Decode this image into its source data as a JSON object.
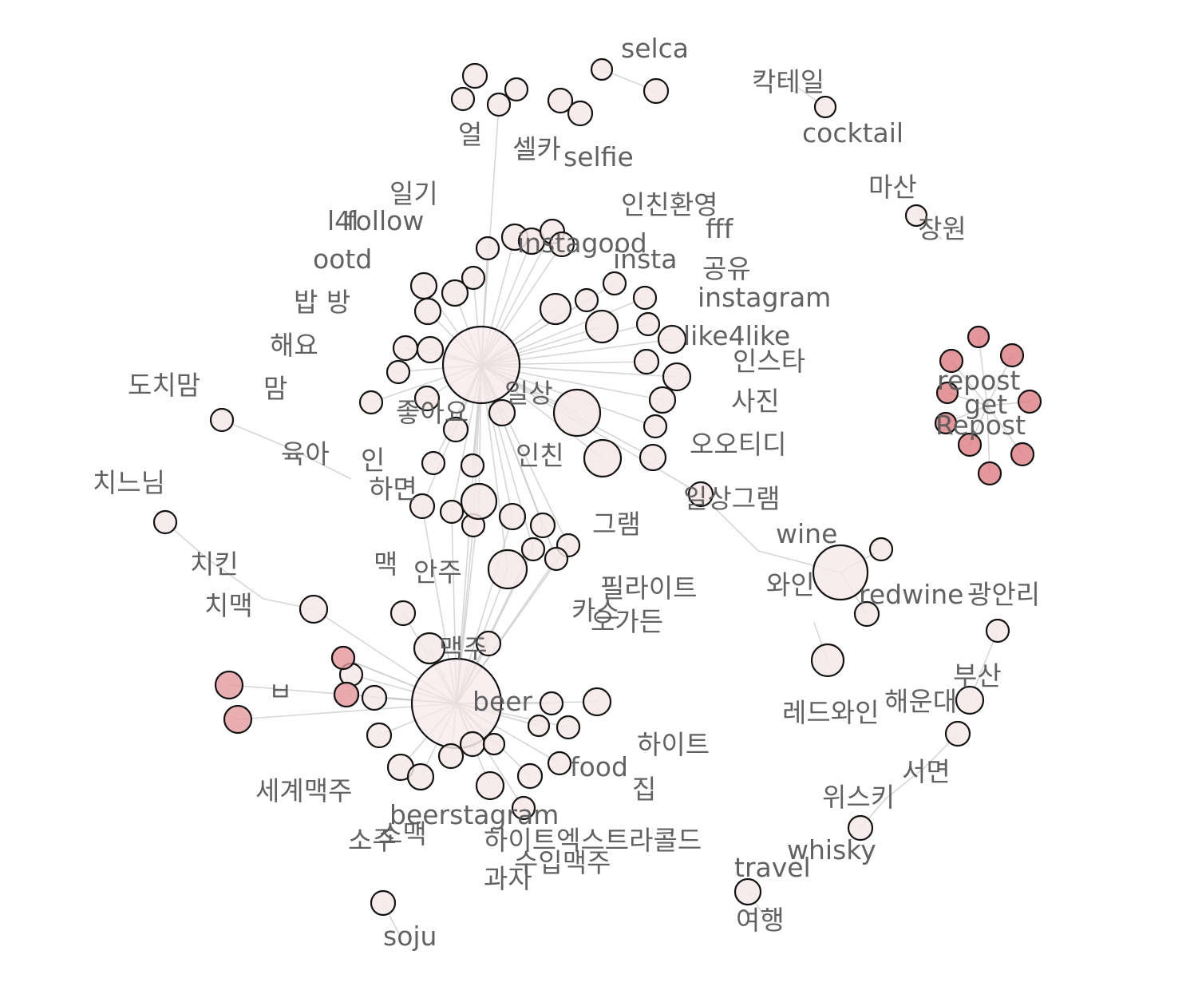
{
  "colors": {
    "node_fill": "#f6e8e9",
    "node_fill_hot": "#e39a9e",
    "node_fill_hot_dark": "#d9747a",
    "edge": "#c9c9c9",
    "label": "#5a5a5a"
  },
  "nodes": [
    {
      "id": "hub_daily",
      "r": 48
    },
    {
      "id": "hub_beer",
      "r": 56
    },
    {
      "id": "n1"
    },
    {
      "id": "n2"
    },
    {
      "id": "n3"
    },
    {
      "id": "n4"
    },
    {
      "id": "n5"
    },
    {
      "id": "n6"
    },
    {
      "id": "n7"
    },
    {
      "id": "n8"
    },
    {
      "id": "n9"
    },
    {
      "id": "n10"
    },
    {
      "id": "n11"
    },
    {
      "id": "n12"
    },
    {
      "id": "n13"
    },
    {
      "id": "n14"
    },
    {
      "id": "n15"
    },
    {
      "id": "n16"
    },
    {
      "id": "n17"
    },
    {
      "id": "n18"
    },
    {
      "id": "n19"
    },
    {
      "id": "n20"
    },
    {
      "id": "n21"
    },
    {
      "id": "n22"
    },
    {
      "id": "n23"
    },
    {
      "id": "n24"
    },
    {
      "id": "n25"
    },
    {
      "id": "n26"
    },
    {
      "id": "n27"
    },
    {
      "id": "n28"
    },
    {
      "id": "n29"
    },
    {
      "id": "n30"
    },
    {
      "id": "n31"
    },
    {
      "id": "n32"
    },
    {
      "id": "n33"
    },
    {
      "id": "n34"
    },
    {
      "id": "n35"
    },
    {
      "id": "n36"
    },
    {
      "id": "n37"
    },
    {
      "id": "n38"
    },
    {
      "id": "n39"
    },
    {
      "id": "n40"
    }
  ],
  "labels": [
    {
      "id": "selca",
      "text": "selca"
    },
    {
      "id": "cocktail_ko",
      "text": "칵테일"
    },
    {
      "id": "cocktail",
      "text": "cocktail"
    },
    {
      "id": "eol",
      "text": "얼"
    },
    {
      "id": "selca_ko",
      "text": "셀카"
    },
    {
      "id": "selfie",
      "text": "selfie"
    },
    {
      "id": "masan",
      "text": "마산"
    },
    {
      "id": "changwon",
      "text": "창원"
    },
    {
      "id": "diary",
      "text": "일기"
    },
    {
      "id": "instachin",
      "text": "인친환영"
    },
    {
      "id": "l4l",
      "text": "l4l"
    },
    {
      "id": "follow",
      "text": "follow"
    },
    {
      "id": "fff",
      "text": "fff"
    },
    {
      "id": "instagood",
      "text": "instagood"
    },
    {
      "id": "ootd",
      "text": "ootd"
    },
    {
      "id": "insta",
      "text": "insta"
    },
    {
      "id": "share",
      "text": "공유"
    },
    {
      "id": "instagram",
      "text": "instagram"
    },
    {
      "id": "bapbang",
      "text": "밥 방"
    },
    {
      "id": "like4like",
      "text": "like4like"
    },
    {
      "id": "haeyo",
      "text": "해요"
    },
    {
      "id": "insta_ko",
      "text": "인스타"
    },
    {
      "id": "repost",
      "text": "repost"
    },
    {
      "id": "dochimom",
      "text": "도치맘"
    },
    {
      "id": "mom",
      "text": "맘"
    },
    {
      "id": "daily",
      "text": "일상"
    },
    {
      "id": "photo",
      "text": "사진"
    },
    {
      "id": "get",
      "text": "get"
    },
    {
      "id": "repost2",
      "text": "Repost"
    },
    {
      "id": "likes",
      "text": "좋아요"
    },
    {
      "id": "ootd_ko",
      "text": "오오티디"
    },
    {
      "id": "parenting",
      "text": "육아"
    },
    {
      "id": "in",
      "text": "인"
    },
    {
      "id": "inchin",
      "text": "인친"
    },
    {
      "id": "chinunim",
      "text": "치느님"
    },
    {
      "id": "hamyeon",
      "text": "하면"
    },
    {
      "id": "dailygram",
      "text": "일상그램"
    },
    {
      "id": "gram",
      "text": "그램"
    },
    {
      "id": "wine",
      "text": "wine"
    },
    {
      "id": "chicken",
      "text": "치킨"
    },
    {
      "id": "maek",
      "text": "맥"
    },
    {
      "id": "anju",
      "text": "안주"
    },
    {
      "id": "filite",
      "text": "필라이트"
    },
    {
      "id": "wine_ko",
      "text": "와인"
    },
    {
      "id": "redwine",
      "text": "redwine"
    },
    {
      "id": "gwangalli",
      "text": "광안리"
    },
    {
      "id": "chimaek",
      "text": "치맥"
    },
    {
      "id": "cass",
      "text": "카스"
    },
    {
      "id": "ogarden",
      "text": "오가든"
    },
    {
      "id": "maekju",
      "text": "맥주"
    },
    {
      "id": "busan",
      "text": "부산"
    },
    {
      "id": "bi",
      "text": "ㅂ"
    },
    {
      "id": "beer",
      "text": "beer"
    },
    {
      "id": "haeundae",
      "text": "해운대"
    },
    {
      "id": "redwine_ko",
      "text": "레드와인"
    },
    {
      "id": "hite",
      "text": "하이트"
    },
    {
      "id": "food",
      "text": "food"
    },
    {
      "id": "seomyeon",
      "text": "서면"
    },
    {
      "id": "worldbeer",
      "text": "세계맥주"
    },
    {
      "id": "house",
      "text": "집"
    },
    {
      "id": "whisky_ko",
      "text": "위스키"
    },
    {
      "id": "beerstagram",
      "text": "beerstagram"
    },
    {
      "id": "somaek",
      "text": "소맥"
    },
    {
      "id": "soju_ko",
      "text": "소주"
    },
    {
      "id": "hiteextra",
      "text": "하이트엑스트라콜드"
    },
    {
      "id": "whisky",
      "text": "whisky"
    },
    {
      "id": "importbeer",
      "text": "수입맥주"
    },
    {
      "id": "travel",
      "text": "travel"
    },
    {
      "id": "snack",
      "text": "과자"
    },
    {
      "id": "travel_ko",
      "text": "여행"
    },
    {
      "id": "soju",
      "text": "soju"
    }
  ]
}
